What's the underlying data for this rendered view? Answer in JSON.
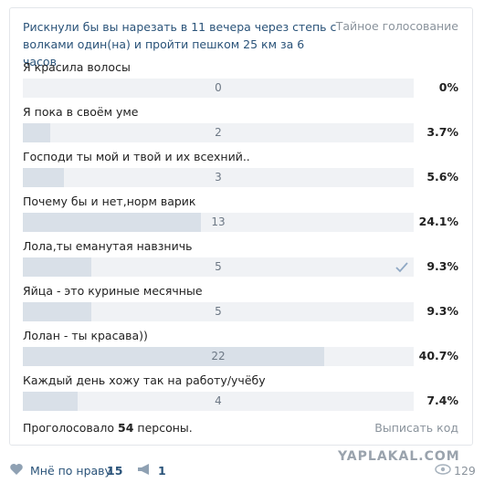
{
  "poll": {
    "title": "Рискнули бы вы нарезать в 11 вечера через стeпь с волками один(на) и пройти пешком 25 км за 6 часов",
    "privacy": "Тайное голосование",
    "options": [
      {
        "label": "Я красила волосы",
        "votes": 0,
        "percent": {
          "value": 0,
          "label": "0%"
        }
      },
      {
        "label": "Я пока в своём уме",
        "votes": 2,
        "percent": {
          "value": 3.7,
          "label": "3.7%"
        }
      },
      {
        "label": "Господи ты мой и твой и их всехний..",
        "votes": 3,
        "percent": {
          "value": 5.6,
          "label": "5.6%"
        }
      },
      {
        "label": "Почему бы и нет,норм варик",
        "votes": 13,
        "percent": {
          "value": 24.1,
          "label": "24.1%"
        }
      },
      {
        "label": "Лола,ты еманутая навзничь",
        "votes": 5,
        "percent": {
          "value": 9.3,
          "label": "9.3%"
        },
        "chosen": true
      },
      {
        "label": "Яйца - это куриные месячные",
        "votes": 5,
        "percent": {
          "value": 9.3,
          "label": "9.3%"
        }
      },
      {
        "label": "Лолан - ты красава))",
        "votes": 22,
        "percent": {
          "value": 40.7,
          "label": "40.7%"
        }
      },
      {
        "label": "Каждый день хожу так на работу/учёбу",
        "votes": 4,
        "percent": {
          "value": 7.4,
          "label": "7.4%"
        }
      }
    ],
    "voted_prefix": "Проголосовало",
    "voted_count": "54",
    "voted_suffix": "персоны.",
    "embed": "Выписать код"
  },
  "footer": {
    "like_text": "Мнё по нраву",
    "likes": "15",
    "reposts": "1",
    "watermark": "YAPLAKAL.COM",
    "views": "129"
  }
}
